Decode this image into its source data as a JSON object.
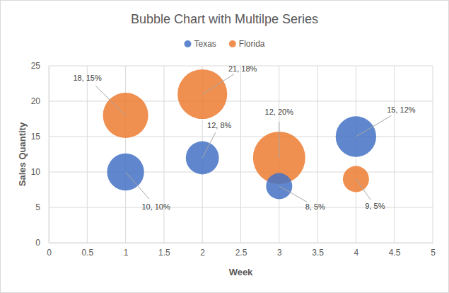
{
  "chart_data": {
    "type": "bubble",
    "title": "Bubble Chart with Multilpe Series",
    "x_label": "Week",
    "y_label": "Sales Quantity",
    "xlim": [
      0,
      5
    ],
    "xticks": [
      0,
      0.5,
      1,
      1.5,
      2,
      2.5,
      3,
      3.5,
      4,
      4.5,
      5
    ],
    "ylim": [
      0,
      25
    ],
    "yticks": [
      0,
      5,
      10,
      15,
      20,
      25
    ],
    "grid": true,
    "legend": "top",
    "data_labels": true,
    "series": [
      {
        "name": "Texas",
        "color": "#4472C4",
        "x": [
          1,
          2,
          3,
          4
        ],
        "values": [
          10,
          12,
          8,
          15
        ],
        "sizes": [
          10,
          8,
          5,
          12
        ],
        "value_labels": [
          "10, 10%",
          "12, 8%",
          "8, 5%",
          "15, 12%"
        ]
      },
      {
        "name": "Florida",
        "color": "#ED7D31",
        "x": [
          1,
          2,
          3,
          4
        ],
        "values": [
          18,
          21,
          12,
          9
        ],
        "sizes": [
          15,
          18,
          20,
          5
        ],
        "value_labels": [
          "18, 15%",
          "21, 18%",
          "12, 20%",
          "9, 5%"
        ]
      }
    ]
  }
}
